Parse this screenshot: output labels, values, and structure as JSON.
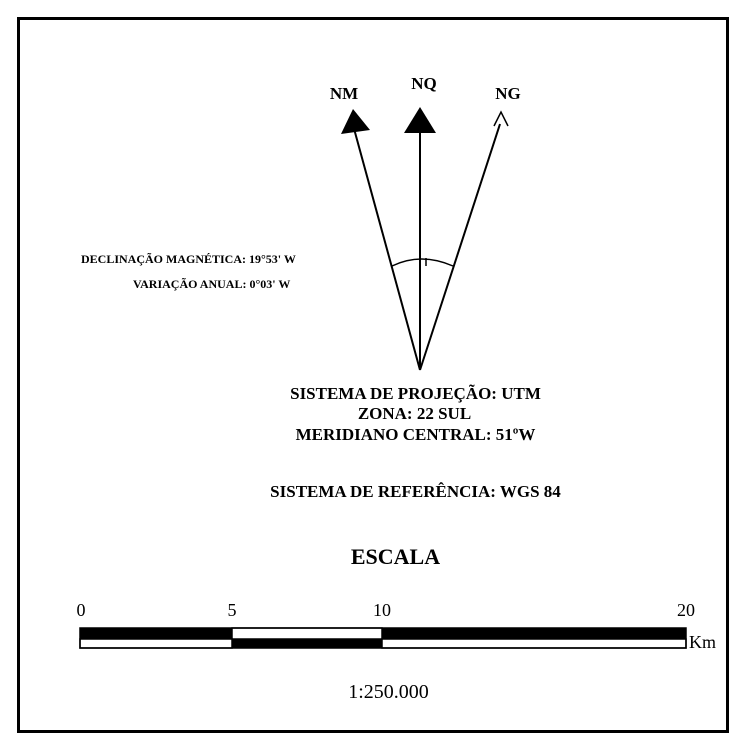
{
  "north_arrows": {
    "magnetic": "NM",
    "quadricula": "NQ",
    "geographic": "NG"
  },
  "declination": {
    "magnetic": "DECLINAÇÃO MAGNÉTICA: 19°53' W",
    "annual_variation": "VARIAÇÃO ANUAL: 0°03' W"
  },
  "projection": {
    "system": "SISTEMA DE PROJEÇÃO: UTM",
    "zone": "ZONA: 22 SUL",
    "central_meridian": "MERIDIANO CENTRAL: 51ºW",
    "reference": "SISTEMA DE REFERÊNCIA: WGS 84"
  },
  "scale": {
    "title": "ESCALA",
    "ticks": [
      "0",
      "5",
      "10",
      "20"
    ],
    "tick_values_km": [
      0,
      5,
      10,
      20
    ],
    "unit": "Km",
    "ratio": "1:250.000"
  },
  "colors": {
    "ink": "#000000",
    "paper": "#ffffff"
  }
}
